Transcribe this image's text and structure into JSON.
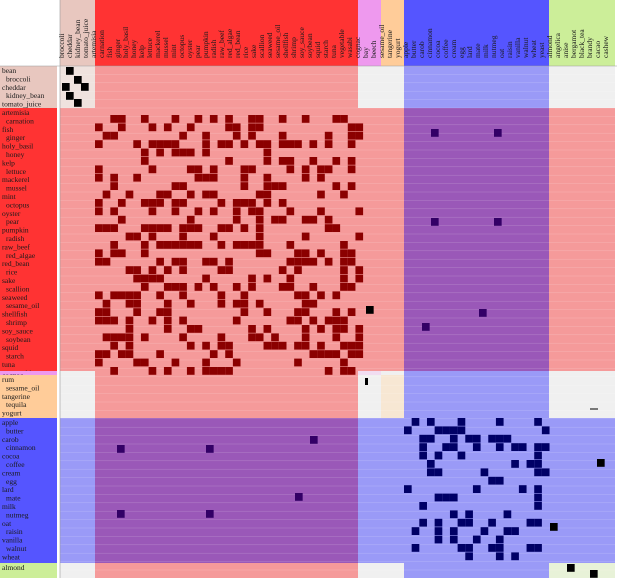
{
  "groups": [
    {
      "id": "g1",
      "color": "#e8c7bf",
      "lightFill": "#efe2de",
      "labels": [
        "bean",
        "broccoli",
        "cheddar",
        "kidney_bean",
        "tomato_juice"
      ]
    },
    {
      "id": "g2",
      "color": "#ff3333",
      "lightFill": "#f59a9a",
      "labels": [
        "artemisia",
        "carnation",
        "fish",
        "ginger",
        "holy_basil",
        "honey",
        "kelp",
        "lettuce",
        "mackerel",
        "mussel",
        "mint",
        "octopus",
        "oyster",
        "pear",
        "pumpkin",
        "radish",
        "raw_beef",
        "red_algae",
        "red_bean",
        "rice",
        "sake",
        "scallion",
        "seaweed",
        "sesame_oil",
        "shellfish",
        "shrimp",
        "soy_sauce",
        "soybean",
        "squid",
        "starch",
        "tuna",
        "vegetable",
        "wasabi"
      ]
    },
    {
      "id": "g3",
      "color": "#ee99ee",
      "lightFill": "#f1ddf1",
      "labels": [
        "cognac"
      ]
    },
    {
      "id": "g4",
      "color": "#ffcc99",
      "lightFill": "#f7e7d3",
      "labels": [
        "rum",
        "sesame_oil",
        "tangerine",
        "tequila",
        "yogurt"
      ]
    },
    {
      "id": "g5",
      "color": "#5555ff",
      "lightFill": "#9a9af7",
      "labels": [
        "apple",
        "butter",
        "carob",
        "cinnamon",
        "cocoa",
        "coffee",
        "cream",
        "egg",
        "lard",
        "mate",
        "milk",
        "nutmeg",
        "oat",
        "raisin",
        "vanilla",
        "walnut",
        "wheat",
        "yeast"
      ]
    },
    {
      "id": "g6",
      "color": "#ccee99",
      "lightFill": "#e8f2d8",
      "labels": [
        "almond",
        "angelica",
        "anise",
        "bergamot",
        "black_tea",
        "brandy",
        "cacao",
        "cashew"
      ]
    }
  ],
  "colHeaders": [
    "broccoli",
    "cheddar",
    "kidney_bean",
    "tomato_juice",
    "artemisia",
    "carnation",
    "fish",
    "ginger",
    "holy_basil",
    "honey",
    "kelp",
    "lettuce",
    "mackerel",
    "mussel",
    "mint",
    "octopus",
    "oyster",
    "pear",
    "pumpkin",
    "radish",
    "raw_beef",
    "red_algae",
    "red_bean",
    "rice",
    "sake",
    "scallion",
    "seaweed",
    "sesame_oil",
    "shellfish",
    "shrimp",
    "soy_sauce",
    "soybean",
    "squid",
    "starch",
    "tuna",
    "vegetable",
    "wasabi",
    "cognac",
    "bay",
    "beech",
    "sesame_oil",
    "tangerine",
    "yogurt",
    "apple",
    "butter",
    "carob",
    "cinnamon",
    "cocoa",
    "coffee",
    "cream",
    "egg",
    "lard",
    "mate",
    "milk",
    "nutmeg",
    "oat",
    "raisin",
    "vanilla",
    "walnut",
    "wheat",
    "yeast",
    "almond",
    "angelica",
    "anise",
    "bergamot",
    "black_tea",
    "brandy",
    "cacao",
    "cashew"
  ],
  "colors": {
    "cell": "#000000",
    "crossCell": "#330066",
    "background": "#ffffff"
  }
}
